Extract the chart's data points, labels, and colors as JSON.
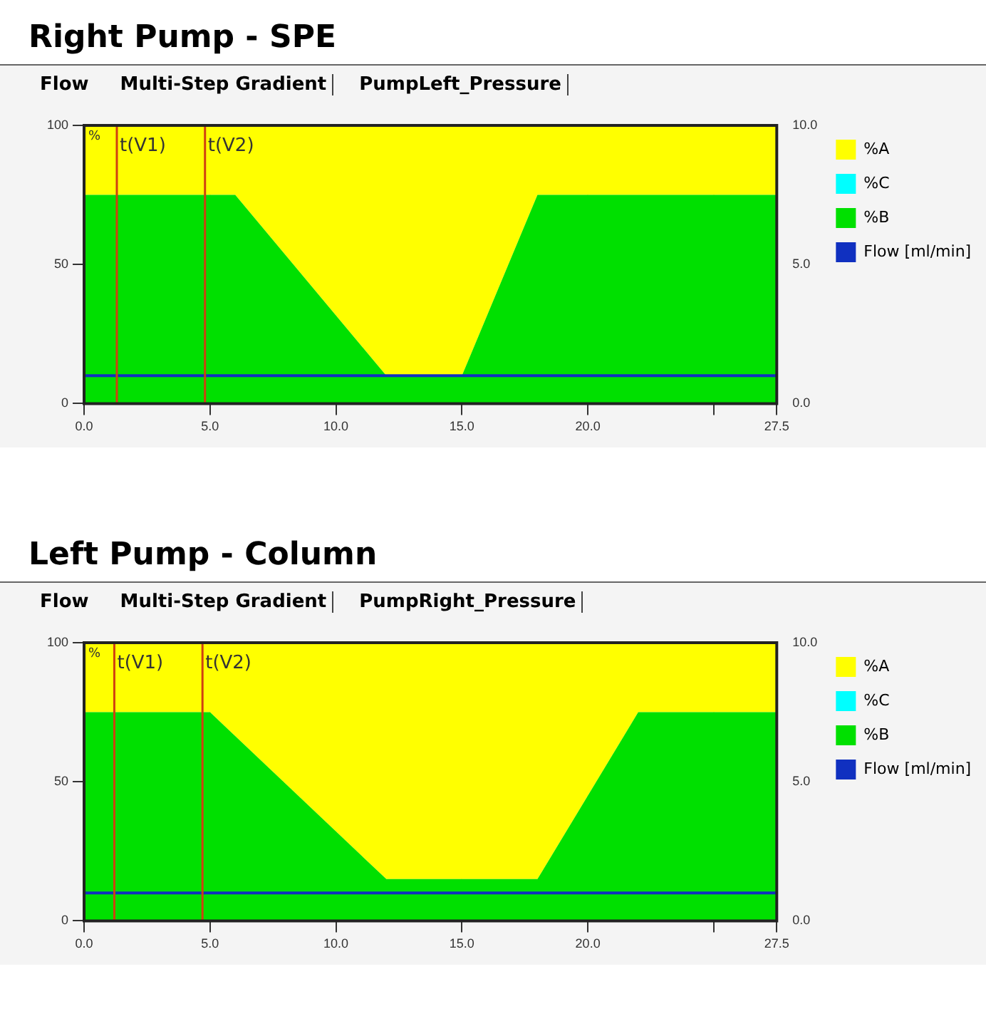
{
  "chart_data": [
    {
      "type": "area",
      "title": "Right Pump - SPE",
      "annotations": [
        "Flow",
        "Multi-Step Gradient",
        "PumpLeft_Pressure"
      ],
      "ylabel": "%",
      "stacked": true,
      "grid": true,
      "legend": "right",
      "x": [
        0,
        6.0,
        12.0,
        15.0,
        18.0,
        27.5
      ],
      "series": [
        {
          "name": "%B",
          "color": "#00e000",
          "values": [
            75,
            75,
            10,
            10,
            75,
            75
          ]
        },
        {
          "name": "%C",
          "color": "#00ffff",
          "values": [
            null,
            null,
            null,
            null,
            null,
            null
          ]
        },
        {
          "name": "%A",
          "color": "#ffff00",
          "values": [
            25,
            25,
            90,
            90,
            25,
            25
          ]
        },
        {
          "name": "Flow [ml/min]",
          "type": "line",
          "axis": "y2",
          "color": "#1030c0",
          "values": [
            1.0,
            1.0,
            1.0,
            1.0,
            1.0,
            1.0
          ]
        }
      ],
      "xlim": [
        0,
        27.5
      ],
      "xticks": [
        {
          "value": 0,
          "label": "0.0"
        },
        {
          "value": 5,
          "label": "5.0"
        },
        {
          "value": 10,
          "label": "10.0"
        },
        {
          "value": 15,
          "label": "15.0"
        },
        {
          "value": 20,
          "label": "20.0"
        },
        {
          "value": 25,
          "label": null
        },
        {
          "value": 27.5,
          "label": "27.5"
        }
      ],
      "ylim": [
        0,
        100
      ],
      "yticks": [
        0,
        50,
        100
      ],
      "y2lim": [
        0,
        10
      ],
      "y2ticks": [
        {
          "value": 0,
          "label": "0.0"
        },
        {
          "value": 5,
          "label": "5.0"
        },
        {
          "value": 10,
          "label": "10.0"
        }
      ],
      "ref_lines": [
        {
          "axis": "x",
          "value": 1.3,
          "label": "t(V1)",
          "color": "#d04010"
        },
        {
          "axis": "x",
          "value": 4.8,
          "label": "t(V2)",
          "color": "#d04010"
        }
      ]
    },
    {
      "type": "area",
      "title": "Left Pump - Column",
      "annotations": [
        "Flow",
        "Multi-Step Gradient",
        "PumpRight_Pressure"
      ],
      "ylabel": "%",
      "stacked": true,
      "grid": true,
      "legend": "right",
      "x": [
        0,
        5.0,
        12.0,
        18.0,
        22.0,
        27.5
      ],
      "series": [
        {
          "name": "%B",
          "color": "#00e000",
          "values": [
            75,
            75,
            15,
            15,
            75,
            75
          ]
        },
        {
          "name": "%C",
          "color": "#00ffff",
          "values": [
            null,
            null,
            null,
            null,
            null,
            null
          ]
        },
        {
          "name": "%A",
          "color": "#ffff00",
          "values": [
            25,
            25,
            85,
            85,
            25,
            25
          ]
        },
        {
          "name": "Flow [ml/min]",
          "type": "line",
          "axis": "y2",
          "color": "#1030c0",
          "values": [
            1.0,
            1.0,
            1.0,
            1.0,
            1.0,
            1.0
          ]
        }
      ],
      "xlim": [
        0,
        27.5
      ],
      "xticks": [
        {
          "value": 0,
          "label": "0.0"
        },
        {
          "value": 5,
          "label": "5.0"
        },
        {
          "value": 10,
          "label": "10.0"
        },
        {
          "value": 15,
          "label": "15.0"
        },
        {
          "value": 20,
          "label": "20.0"
        },
        {
          "value": 25,
          "label": null
        },
        {
          "value": 27.5,
          "label": "27.5"
        }
      ],
      "ylim": [
        0,
        100
      ],
      "yticks": [
        0,
        50,
        100
      ],
      "y2lim": [
        0,
        10
      ],
      "y2ticks": [
        {
          "value": 0,
          "label": "0.0"
        },
        {
          "value": 5,
          "label": "5.0"
        },
        {
          "value": 10,
          "label": "10.0"
        }
      ],
      "ref_lines": [
        {
          "axis": "x",
          "value": 1.2,
          "label": "t(V1)",
          "color": "#d04010"
        },
        {
          "axis": "x",
          "value": 4.7,
          "label": "t(V2)",
          "color": "#d04010"
        }
      ]
    }
  ]
}
